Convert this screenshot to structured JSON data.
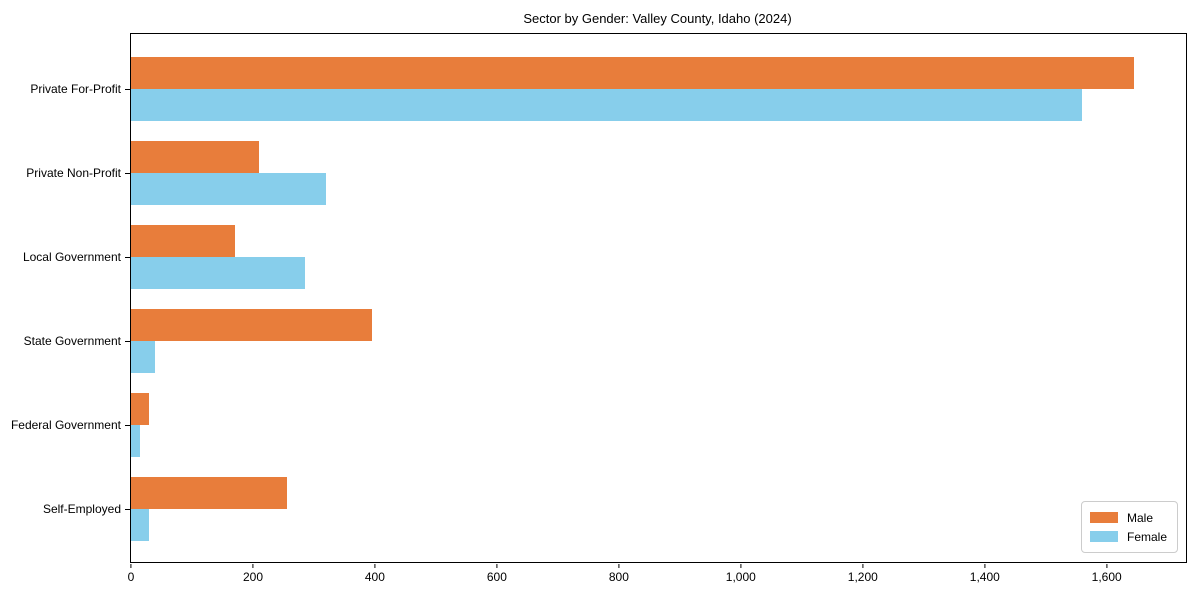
{
  "chart_data": {
    "type": "bar",
    "orientation": "horizontal",
    "title": "Sector by Gender: Valley County, Idaho (2024)",
    "xlabel": "",
    "ylabel": "",
    "categories": [
      "Private For-Profit",
      "Private Non-Profit",
      "Local Government",
      "State Government",
      "Federal Government",
      "Self-Employed"
    ],
    "series": [
      {
        "name": "Male",
        "color": "#E87D3B",
        "values": [
          1645,
          210,
          170,
          395,
          30,
          255
        ]
      },
      {
        "name": "Female",
        "color": "#87CEEB",
        "values": [
          1560,
          320,
          285,
          40,
          15,
          30
        ]
      }
    ],
    "xlim": [
      0,
      1730
    ],
    "xticks": [
      0,
      200,
      400,
      600,
      800,
      1000,
      1200,
      1400,
      1600
    ],
    "xtick_labels": [
      "0",
      "200",
      "400",
      "600",
      "800",
      "1,000",
      "1,200",
      "1,400",
      "1,600"
    ],
    "grid": false,
    "legend": {
      "position": "lower right",
      "entries": [
        "Male",
        "Female"
      ]
    }
  }
}
